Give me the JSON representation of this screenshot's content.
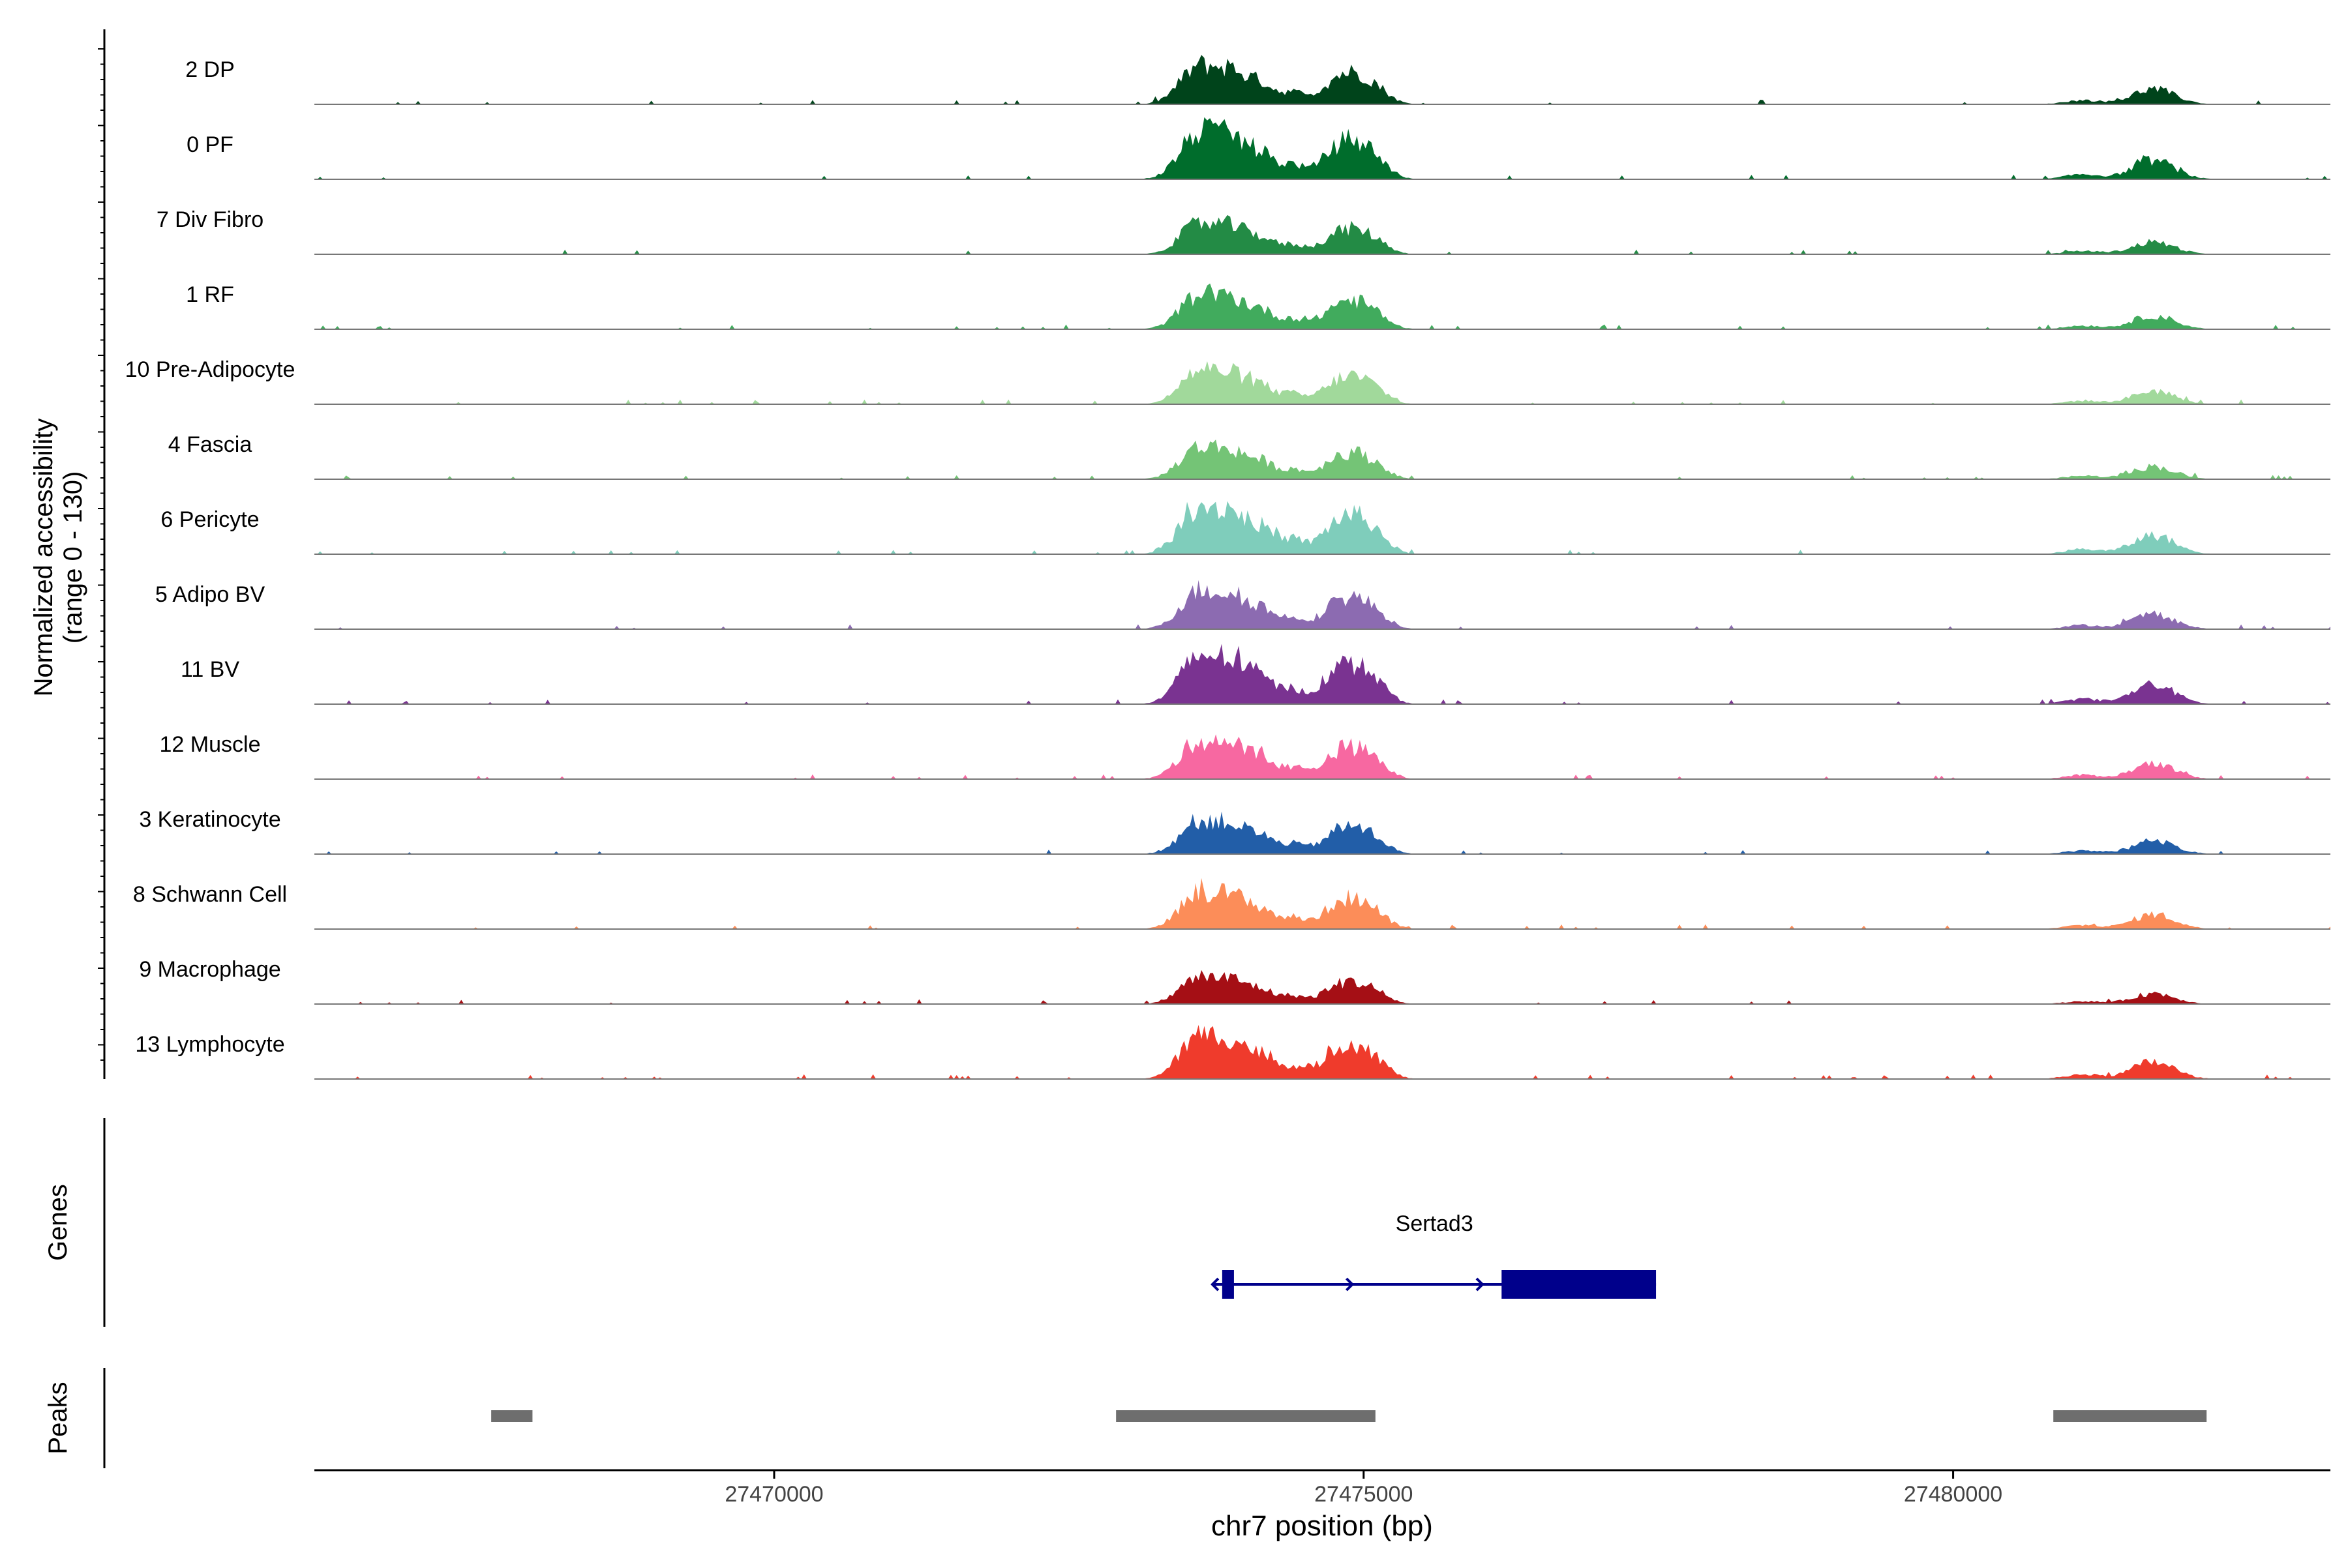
{
  "chart_data": {
    "type": "area",
    "title": "",
    "ylabel_line1": "Normalized accessibility",
    "ylabel_line2": "(range 0 - 130)",
    "yrange": [
      0,
      130
    ],
    "xlabel": "chr7 position (bp)",
    "xlim": [
      27466100,
      27483200
    ],
    "xticks": [
      27470000,
      27475000,
      27480000
    ],
    "xtick_labels": [
      "27470000",
      "27475000",
      "27480000"
    ],
    "tracks": [
      {
        "name": "2 DP",
        "color": "#00441b"
      },
      {
        "name": "0 PF",
        "color": "#006d2c"
      },
      {
        "name": "7 Div Fibro",
        "color": "#238b45"
      },
      {
        "name": "1 RF",
        "color": "#41ab5d"
      },
      {
        "name": "10 Pre-Adipocyte",
        "color": "#a1d99b"
      },
      {
        "name": "4 Fascia",
        "color": "#74c476"
      },
      {
        "name": "6 Pericyte",
        "color": "#7fcdbb"
      },
      {
        "name": "5 Adipo BV",
        "color": "#8c6bb1"
      },
      {
        "name": "11 BV",
        "color": "#7a3391"
      },
      {
        "name": "12 Muscle",
        "color": "#f768a1"
      },
      {
        "name": "3 Keratinocyte",
        "color": "#225ea8"
      },
      {
        "name": "8 Schwann Cell",
        "color": "#fc8d59"
      },
      {
        "name": "9 Macrophage",
        "color": "#a50f15"
      },
      {
        "name": "13 Lymphocyte",
        "color": "#ef3b2c"
      }
    ],
    "peak_regions": [
      {
        "center": 27473600,
        "sigma": 160,
        "amp": 0.72
      },
      {
        "center": 27473900,
        "sigma": 130,
        "amp": 0.55
      },
      {
        "center": 27474150,
        "sigma": 110,
        "amp": 0.35
      },
      {
        "center": 27474400,
        "sigma": 90,
        "amp": 0.2
      },
      {
        "center": 27474850,
        "sigma": 180,
        "amp": 0.6
      },
      {
        "center": 27475100,
        "sigma": 120,
        "amp": 0.2
      },
      {
        "center": 27481700,
        "sigma": 180,
        "amp": 0.3
      },
      {
        "center": 27481100,
        "sigma": 150,
        "amp": 0.08
      }
    ],
    "genes_panel_label": "Genes",
    "gene": {
      "name": "Sertad3",
      "start": 27473800,
      "end": 27477480,
      "strand": "+",
      "color": "#00008b",
      "exons": [
        [
          27473800,
          27473900
        ],
        [
          27476170,
          27477480
        ]
      ]
    },
    "peaks_panel_label": "Peaks",
    "peak_color": "#6e6e6e",
    "peaks": [
      [
        27467600,
        27467950
      ],
      [
        27472900,
        27475100
      ],
      [
        27480850,
        27482150
      ]
    ]
  }
}
